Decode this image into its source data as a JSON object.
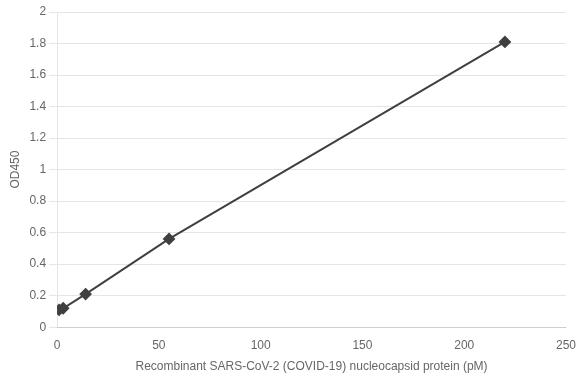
{
  "chart_data": {
    "type": "line",
    "x": [
      1,
      3,
      14,
      55,
      220
    ],
    "values": [
      0.11,
      0.12,
      0.21,
      0.56,
      1.81
    ],
    "color": "#404040",
    "marker": "diamond",
    "xlabel": "Recombinant SARS-CoV-2 (COVID-19) nucleocapsid protein (pM)",
    "ylabel": "OD450",
    "xlim": [
      0,
      250
    ],
    "ylim": [
      0,
      2
    ],
    "xticks": [
      0,
      50,
      100,
      150,
      200,
      250
    ],
    "yticks": [
      0,
      0.2,
      0.4,
      0.6,
      0.8,
      1,
      1.2,
      1.4,
      1.6,
      1.8,
      2
    ],
    "grid": "y"
  }
}
